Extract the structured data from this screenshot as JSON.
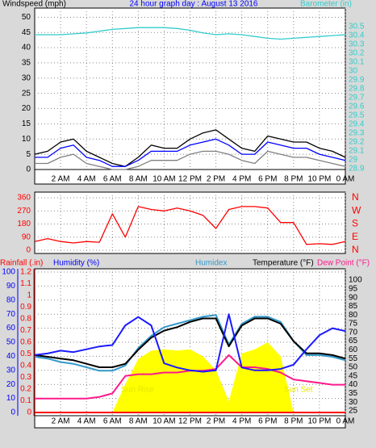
{
  "chart_data": [
    {
      "type": "line",
      "title": "24 hour graph day : August 13 2016",
      "ylabel": "Windspeed (mph)",
      "y2label": "Barometer (in)",
      "x": [
        0,
        1,
        2,
        3,
        4,
        5,
        6,
        7,
        8,
        9,
        10,
        11,
        12,
        13,
        14,
        15,
        16,
        17,
        18,
        19,
        20,
        21,
        22,
        23,
        24
      ],
      "xlim": [
        0,
        24
      ],
      "xticks": [
        {
          "value": 2,
          "label": "2 AM"
        },
        {
          "value": 4,
          "label": "4 AM"
        },
        {
          "value": 6,
          "label": "6 AM"
        },
        {
          "value": 8,
          "label": "8 AM"
        },
        {
          "value": 10,
          "label": "10 AM"
        },
        {
          "value": 12,
          "label": "12 PM"
        },
        {
          "value": 14,
          "label": "2 PM"
        },
        {
          "value": 16,
          "label": "4 PM"
        },
        {
          "value": 18,
          "label": "6 PM"
        },
        {
          "value": 20,
          "label": "8 PM"
        },
        {
          "value": 22,
          "label": "10 PM"
        },
        {
          "value": 24,
          "label": "0 AM"
        }
      ],
      "ylim": [
        0,
        53
      ],
      "yticks": [
        0,
        5,
        10,
        15,
        20,
        25,
        30,
        35,
        40,
        45,
        50
      ],
      "y2lim": [
        28.89,
        30.71
      ],
      "y2ticks": [
        28.9,
        29,
        29.1,
        29.2,
        29.3,
        29.4,
        29.5,
        29.6,
        29.7,
        29.8,
        29.9,
        30,
        30.1,
        30.2,
        30.3,
        30.4,
        30.5
      ],
      "grid": true,
      "series": [
        {
          "color": "#000000",
          "values": [
            5,
            6,
            9,
            10,
            6,
            4,
            2,
            1,
            4,
            8,
            7,
            7,
            10,
            12,
            13,
            10,
            7,
            6,
            11,
            10,
            9,
            9,
            7,
            6,
            4
          ]
        },
        {
          "color": "#808080",
          "values": [
            2,
            2,
            4,
            5,
            2,
            1,
            0,
            0,
            1,
            3,
            3,
            3,
            5,
            6,
            6,
            5,
            3,
            2,
            6,
            5,
            4,
            4,
            3,
            2,
            1
          ]
        },
        {
          "color": "#0000ff",
          "values": [
            4,
            4,
            7,
            8,
            4,
            3,
            1,
            1,
            3,
            6,
            6,
            6,
            8,
            9,
            10,
            8,
            5,
            5,
            9,
            8,
            7,
            7,
            5,
            4,
            3
          ]
        },
        {
          "color": "#33cccc",
          "axis": "y2",
          "values": [
            30.41,
            30.41,
            30.41,
            30.42,
            30.43,
            30.45,
            30.47,
            30.48,
            30.49,
            30.49,
            30.49,
            30.48,
            30.46,
            30.43,
            30.41,
            30.42,
            30.41,
            30.39,
            30.37,
            30.36,
            30.37,
            30.38,
            30.39,
            30.4,
            30.41
          ]
        }
      ]
    },
    {
      "type": "line",
      "x": [
        0,
        1,
        2,
        3,
        4,
        5,
        6,
        7,
        8,
        9,
        10,
        11,
        12,
        13,
        14,
        15,
        16,
        17,
        18,
        19,
        20,
        21,
        22,
        23,
        24
      ],
      "xlim": [
        0,
        24
      ],
      "ylim": [
        -22,
        399
      ],
      "yticks": [
        0,
        90,
        180,
        270,
        360
      ],
      "y2lim": [
        -22,
        399
      ],
      "y2ticks": [
        {
          "value": 360,
          "label": "N"
        },
        {
          "value": 270,
          "label": "W"
        },
        {
          "value": 180,
          "label": "S"
        },
        {
          "value": 90,
          "label": "E"
        },
        {
          "value": 0,
          "label": "N"
        }
      ],
      "grid": true,
      "series": [
        {
          "color": "#ff0000",
          "values": [
            60,
            80,
            60,
            50,
            60,
            55,
            250,
            90,
            300,
            280,
            270,
            290,
            270,
            240,
            150,
            280,
            300,
            300,
            290,
            190,
            190,
            40,
            45,
            40,
            60
          ]
        }
      ]
    },
    {
      "type": "line",
      "labels": [
        "Rainfall (.in)",
        "Humidity (%)",
        "Humidex",
        "Temperature (°F)",
        "Dew Point (°F)"
      ],
      "annotations": [
        "Sun Rise",
        "Sun Set"
      ],
      "x": [
        0,
        1,
        2,
        3,
        4,
        5,
        6,
        7,
        8,
        9,
        10,
        11,
        12,
        13,
        14,
        15,
        16,
        17,
        18,
        19,
        20,
        21,
        22,
        23,
        24
      ],
      "xlim": [
        0,
        24
      ],
      "xticks": [
        {
          "value": 2,
          "label": "2 AM"
        },
        {
          "value": 4,
          "label": "4 AM"
        },
        {
          "value": 6,
          "label": "6 AM"
        },
        {
          "value": 8,
          "label": "8 AM"
        },
        {
          "value": 10,
          "label": "10 AM"
        },
        {
          "value": 12,
          "label": "12 PM"
        },
        {
          "value": 14,
          "label": "2 PM"
        },
        {
          "value": 16,
          "label": "4 PM"
        },
        {
          "value": 18,
          "label": "6 PM"
        },
        {
          "value": 20,
          "label": "8 PM"
        },
        {
          "value": 22,
          "label": "10 PM"
        },
        {
          "value": 24,
          "label": "0 AM"
        }
      ],
      "ylim": [
        -2.3,
        102.3
      ],
      "yticks": [
        0,
        10,
        20,
        30,
        40,
        50,
        60,
        70,
        80,
        90,
        100
      ],
      "y3lim": [
        -0.0276,
        1.2276
      ],
      "y3ticks": [
        0,
        0.1,
        0.2,
        0.3,
        0.4,
        0.5,
        0.6,
        0.7,
        0.8,
        0.9,
        1,
        1.1,
        1.2
      ],
      "y2lim": [
        22.2,
        106.5
      ],
      "y2ticks": [
        25,
        30,
        35,
        40,
        45,
        50,
        55,
        60,
        65,
        70,
        75,
        80,
        85,
        90,
        95,
        100
      ],
      "grid": true,
      "series": [
        {
          "type": "area",
          "color": "#ffff00",
          "values": [
            0,
            0,
            0,
            0,
            0,
            0,
            0,
            20,
            38,
            44,
            45,
            44,
            45,
            40,
            30,
            8,
            42,
            45,
            50,
            40,
            0,
            0,
            0,
            0,
            0
          ]
        },
        {
          "color": "#ff0000",
          "axis": "y3",
          "values": [
            0,
            0,
            0,
            0,
            0,
            0,
            0,
            0,
            0,
            0,
            0,
            0,
            0,
            0,
            0,
            0,
            0,
            0,
            0,
            0,
            0,
            0,
            0,
            0,
            0
          ]
        },
        {
          "color": "#ff1a8c",
          "axis": "y2",
          "values": [
            32,
            32,
            32,
            32,
            32,
            33,
            35,
            45,
            46,
            46,
            47,
            47,
            48,
            48,
            49,
            57,
            50,
            50,
            49,
            47,
            43,
            42,
            41,
            40,
            40
          ]
        },
        {
          "color": "#3399cc",
          "axis": "y2",
          "values": [
            56,
            55,
            53,
            52,
            50,
            48,
            48,
            51,
            61,
            68,
            73,
            75,
            77,
            79,
            80,
            63,
            75,
            79,
            79,
            76,
            65,
            57,
            57,
            56,
            54
          ]
        },
        {
          "color": "#000000",
          "axis": "y2",
          "values": [
            57,
            56,
            55,
            54,
            52,
            50,
            50,
            52,
            60,
            67,
            71,
            73,
            76,
            78,
            78,
            62,
            74,
            78,
            78,
            75,
            65,
            58,
            58,
            57,
            55
          ]
        },
        {
          "color": "#1a1aff",
          "values": [
            41,
            42,
            44,
            43,
            45,
            47,
            48,
            62,
            68,
            62,
            35,
            32,
            30,
            29,
            30,
            70,
            32,
            30,
            30,
            31,
            34,
            45,
            55,
            60,
            58
          ]
        }
      ]
    }
  ]
}
